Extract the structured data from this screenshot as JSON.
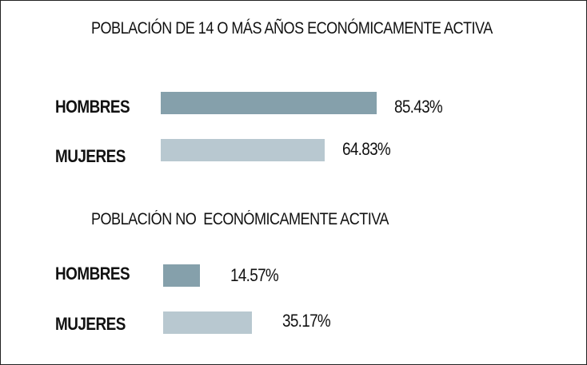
{
  "colors": {
    "hombres": "#85a0ab",
    "mujeres": "#b8c8d0"
  },
  "chart_data": [
    {
      "type": "bar",
      "orientation": "horizontal",
      "title": "POBLACIÓN DE 14 O MÁS AÑOS ECONÓMICAMENTE ACTIVA",
      "categories": [
        "HOMBRES",
        "MUJERES"
      ],
      "values": [
        85.43,
        64.83
      ],
      "value_labels": [
        "85.43%",
        "64.83%"
      ],
      "unit": "%",
      "xlim": [
        0,
        100
      ],
      "grid": false,
      "legend": "none"
    },
    {
      "type": "bar",
      "orientation": "horizontal",
      "title": "POBLACIÓN NO  ECONÓMICAMENTE ACTIVA",
      "categories": [
        "HOMBRES",
        "MUJERES"
      ],
      "values": [
        14.57,
        35.17
      ],
      "value_labels": [
        "14.57%",
        "35.17%"
      ],
      "unit": "%",
      "xlim": [
        0,
        100
      ],
      "grid": false,
      "legend": "none"
    }
  ]
}
